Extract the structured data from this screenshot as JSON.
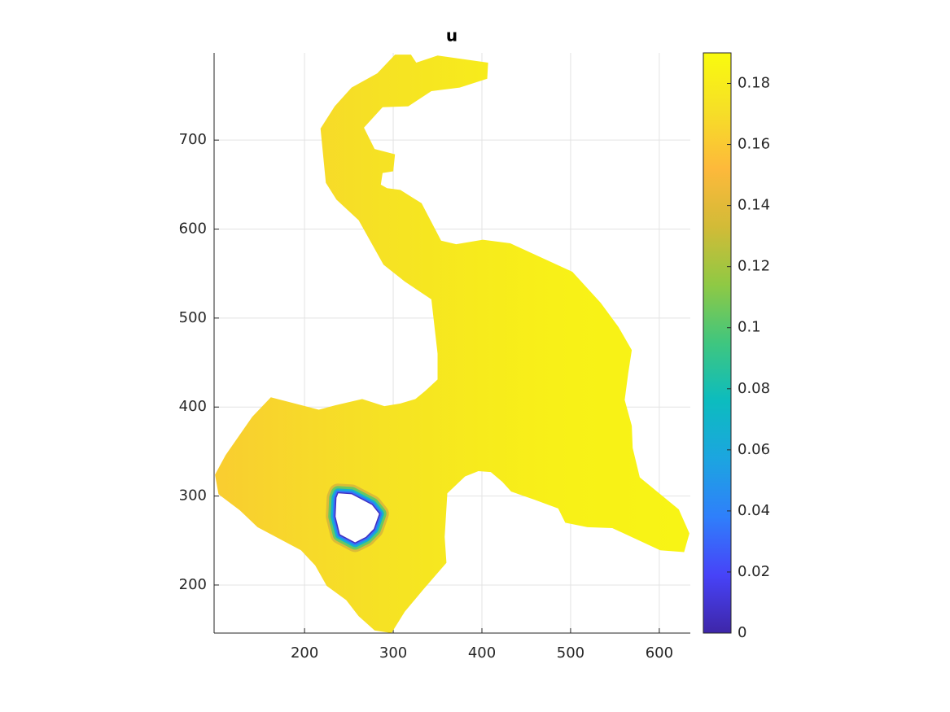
{
  "chart_data": {
    "type": "patch",
    "title": "u",
    "xlim": [
      98,
      635
    ],
    "ylim": [
      146,
      798
    ],
    "xticks": [
      200,
      300,
      400,
      500,
      600
    ],
    "yticks": [
      200,
      300,
      400,
      500,
      600,
      700
    ],
    "grid": true,
    "boundary": {
      "x": [
        302,
        320,
        326,
        350,
        407,
        406,
        375,
        343,
        317,
        288,
        267,
        279,
        302,
        300,
        288,
        286,
        293,
        308,
        332,
        354,
        371,
        401,
        432,
        502,
        534,
        554,
        569,
        565,
        561,
        569,
        570,
        578,
        622,
        634,
        628,
        601,
        547,
        519,
        494,
        486,
        459,
        433,
        423,
        410,
        396,
        381,
        361,
        358,
        360,
        334,
        313,
        298,
        279,
        261,
        247,
        225,
        212,
        196,
        147,
        127,
        103,
        99,
        111,
        141,
        162,
        216,
        235,
        265,
        290,
        308,
        325,
        336,
        350,
        350,
        343,
        313,
        289,
        261,
        236,
        224,
        218,
        234,
        253,
        282
      ],
      "y": [
        796,
        796,
        787,
        795,
        787,
        769,
        759,
        755,
        738,
        737,
        714,
        690,
        684,
        665,
        663,
        650,
        646,
        644,
        629,
        587,
        583,
        588,
        584,
        552,
        517,
        490,
        464,
        438,
        408,
        379,
        354,
        321,
        285,
        258,
        237,
        239,
        264,
        265,
        270,
        286,
        296,
        305,
        316,
        327,
        328,
        322,
        303,
        254,
        225,
        195,
        170,
        146,
        149,
        165,
        183,
        199,
        222,
        239,
        265,
        284,
        302,
        324,
        346,
        389,
        411,
        397,
        402,
        409,
        401,
        404,
        409,
        418,
        431,
        460,
        521,
        541,
        560,
        610,
        633,
        652,
        713,
        738,
        759,
        775
      ]
    },
    "hole": {
      "x": [
        238,
        253,
        276,
        284,
        278,
        269,
        257,
        240,
        235,
        236
      ],
      "y": [
        303,
        302,
        290,
        280,
        263,
        254,
        248,
        257,
        277,
        298
      ]
    },
    "field": {
      "x": [
        100,
        200,
        300,
        400,
        500,
        630
      ],
      "values": [
        0.162,
        0.168,
        0.174,
        0.179,
        0.183,
        0.185
      ]
    },
    "colorbar": {
      "clim": [
        0,
        0.19
      ],
      "ticks": [
        0,
        0.02,
        0.04,
        0.06,
        0.08,
        0.1,
        0.12,
        0.14,
        0.16,
        0.18
      ],
      "colormap": [
        "#3e26a8",
        "#4743f8",
        "#2f7ffb",
        "#1ca5e0",
        "#0cbcbf",
        "#3fc67f",
        "#8fc944",
        "#d2bb37",
        "#fdb93b",
        "#f6df27",
        "#f9fb0e"
      ]
    }
  }
}
